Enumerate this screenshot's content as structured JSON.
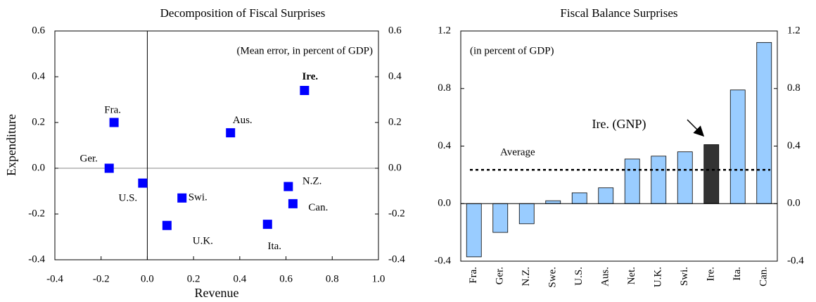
{
  "chart_data": [
    {
      "type": "scatter",
      "title": "Decomposition of Fiscal Surprises",
      "x_label": "Revenue",
      "y_label": "Expenditure",
      "annotation": "(Mean error, in percent of GDP)",
      "color": "#0000ff",
      "labels": [
        "Fra.",
        "Ger.",
        "U.S.",
        "Swi.",
        "U.K.",
        "Aus.",
        "Ita.",
        "N.Z.",
        "Can.",
        "Ire."
      ],
      "bold_labels": [
        "Ire."
      ],
      "x": [
        -0.144,
        -0.165,
        -0.02,
        0.15,
        0.085,
        0.36,
        0.52,
        0.61,
        0.63,
        0.68
      ],
      "y": [
        0.2,
        0.0,
        -0.065,
        -0.13,
        -0.25,
        0.155,
        -0.245,
        -0.08,
        -0.155,
        0.34
      ],
      "xlim": [
        -0.4,
        1.0
      ],
      "xticks": [
        -0.4,
        -0.2,
        {
          "value": 0,
          "label": "0.0"
        },
        0.2,
        0.4,
        0.6,
        0.8,
        {
          "value": 1,
          "label": "1.0"
        }
      ],
      "ylim": [
        -0.4,
        0.6
      ],
      "yticks": [
        -0.4,
        -0.2,
        {
          "value": 0,
          "label": "0.0"
        },
        0.2,
        0.4,
        0.6
      ],
      "y2lim": [
        -0.4,
        0.6
      ],
      "y2ticks": [
        -0.4,
        -0.2,
        {
          "value": 0,
          "label": "0.0"
        },
        0.2,
        0.4,
        0.6
      ]
    },
    {
      "type": "bar",
      "title": "Fiscal Balance Surprises",
      "annotation": "(in percent of GDP)",
      "callout": "Ire. (GNP)",
      "categories": [
        "Fra.",
        "Ger.",
        "N.Z.",
        "Swe.",
        "U.S.",
        "Aus.",
        "Net.",
        "U.K.",
        "Swi.",
        "Ire.",
        "Ita.",
        "Can."
      ],
      "values": [
        -0.37,
        -0.2,
        -0.14,
        0.02,
        0.075,
        0.11,
        0.31,
        0.33,
        0.36,
        0.41,
        0.79,
        1.12
      ],
      "colors": [
        "#99ccff",
        "#99ccff",
        "#99ccff",
        "#99ccff",
        "#99ccff",
        "#99ccff",
        "#99ccff",
        "#99ccff",
        "#99ccff",
        "#333333",
        "#99ccff",
        "#99ccff"
      ],
      "average": {
        "label": "Average",
        "value": 0.235
      },
      "ylim": [
        -0.4,
        1.2
      ],
      "yticks": [
        -0.4,
        {
          "value": 0,
          "label": "0.0"
        },
        0.4,
        0.8,
        1.2
      ],
      "y2lim": [
        -0.4,
        1.2
      ],
      "y2ticks": [
        -0.4,
        {
          "value": 0,
          "label": "0.0"
        },
        0.4,
        0.8,
        1.2
      ]
    }
  ]
}
